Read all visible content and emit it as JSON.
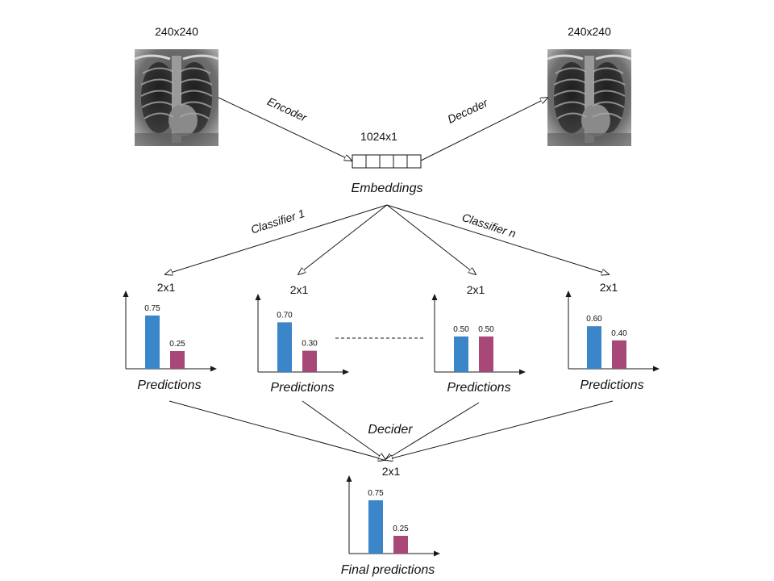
{
  "input_image": {
    "size_label": "240x240",
    "alt": "chest-xray-input"
  },
  "output_image": {
    "size_label": "240x240",
    "alt": "chest-xray-reconstruction"
  },
  "encoder_label": "Encoder",
  "decoder_label": "Decoder",
  "embedding": {
    "size_label": "1024x1",
    "caption": "Embeddings",
    "cells": 5
  },
  "classifier_labels": {
    "first": "Classifier 1",
    "last": "Classifier n"
  },
  "decider_label": "Decider",
  "colors": {
    "class_a": "#3a86c8",
    "class_b": "#a84878",
    "stroke": "#1a1a1a"
  },
  "chart_data": [
    {
      "type": "bar",
      "size_label": "2x1",
      "caption": "Predictions",
      "values": [
        0.75,
        0.25
      ]
    },
    {
      "type": "bar",
      "size_label": "2x1",
      "caption": "Predictions",
      "values": [
        0.7,
        0.3
      ]
    },
    {
      "type": "bar",
      "size_label": "2x1",
      "caption": "Predictions",
      "values": [
        0.5,
        0.5
      ]
    },
    {
      "type": "bar",
      "size_label": "2x1",
      "caption": "Predictions",
      "values": [
        0.6,
        0.4
      ]
    },
    {
      "type": "bar",
      "size_label": "2x1",
      "caption": "Final predictions",
      "values": [
        0.75,
        0.25
      ]
    }
  ]
}
